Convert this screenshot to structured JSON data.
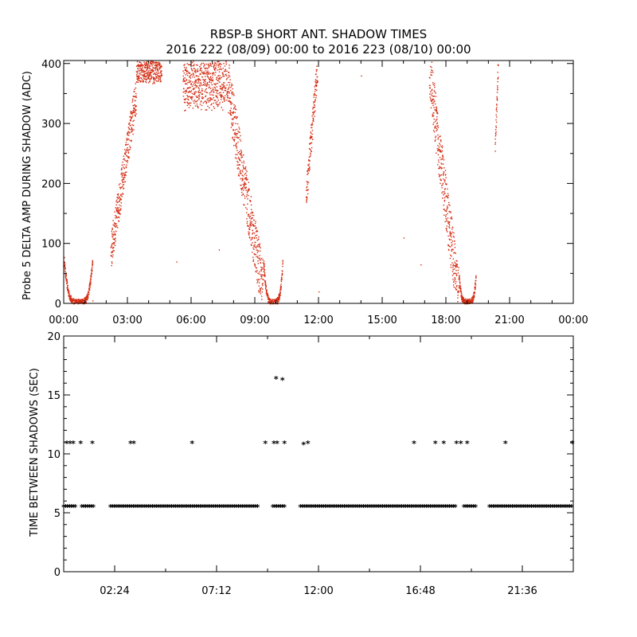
{
  "title_line1": "RBSP-B SHORT ANT. SHADOW TIMES",
  "title_line2": "2016 222 (08/09) 00:00 to 2016 223 (08/10) 00:00",
  "chart_data": [
    {
      "type": "scatter",
      "ylabel": "Probe 5 DELTA AMP DURING SHADOW (ADC)",
      "xlabel": "",
      "xlim_hours": [
        0,
        24
      ],
      "ylim": [
        0,
        405
      ],
      "x_ticks": [
        "00:00",
        "03:00",
        "06:00",
        "09:00",
        "12:00",
        "15:00",
        "18:00",
        "21:00",
        "00:00"
      ],
      "y_ticks": [
        "0",
        "100",
        "200",
        "300",
        "400"
      ],
      "point_color": "#d42a10",
      "clusters": [
        {
          "t0": 0.0,
          "t1": 1.35,
          "y_pattern": "u",
          "y_min": 2,
          "y_max": 75
        },
        {
          "t0": 2.2,
          "t1": 3.4,
          "y_pattern": "rise",
          "y_min": 85,
          "y_max": 350
        },
        {
          "t0": 3.4,
          "t1": 4.6,
          "y_pattern": "sparse-high",
          "y_min": 370,
          "y_max": 405
        },
        {
          "t0": 5.6,
          "t1": 7.6,
          "y_pattern": "plateau",
          "y_min": 330,
          "y_max": 405
        },
        {
          "t0": 7.6,
          "t1": 9.4,
          "y_pattern": "fall",
          "y_min": 20,
          "y_max": 400
        },
        {
          "t0": 9.4,
          "t1": 10.3,
          "y_pattern": "u",
          "y_min": 2,
          "y_max": 70
        },
        {
          "t0": 11.4,
          "t1": 11.95,
          "y_pattern": "rise",
          "y_min": 180,
          "y_max": 400
        },
        {
          "t0": 17.2,
          "t1": 18.6,
          "y_pattern": "fall",
          "y_min": 10,
          "y_max": 400
        },
        {
          "t0": 18.6,
          "t1": 19.4,
          "y_pattern": "u",
          "y_min": 2,
          "y_max": 45
        },
        {
          "t0": 20.3,
          "t1": 20.45,
          "y_pattern": "rise",
          "y_min": 260,
          "y_max": 400
        }
      ],
      "isolated_points": [
        {
          "t": 1.35,
          "y": 5
        },
        {
          "t": 5.3,
          "y": 70
        },
        {
          "t": 7.3,
          "y": 90
        },
        {
          "t": 12.0,
          "y": 20
        },
        {
          "t": 14.0,
          "y": 380
        },
        {
          "t": 16.0,
          "y": 110
        },
        {
          "t": 16.8,
          "y": 65
        }
      ]
    },
    {
      "type": "scatter",
      "ylabel": "TIME BETWEEN SHADOWS (SEC)",
      "xlabel": "",
      "xlim_hours": [
        0,
        24
      ],
      "ylim": [
        0,
        20
      ],
      "x_ticks": [
        "02:24",
        "07:12",
        "12:00",
        "16:48",
        "21:36"
      ],
      "y_ticks": [
        "0",
        "5",
        "10",
        "15",
        "20"
      ],
      "marker": "*",
      "baseline_value": 5.5,
      "baseline_segments_hours": [
        [
          0.0,
          0.6
        ],
        [
          0.85,
          1.45
        ],
        [
          2.2,
          9.2
        ],
        [
          9.85,
          10.45
        ],
        [
          11.15,
          18.45
        ],
        [
          18.85,
          19.45
        ],
        [
          20.05,
          24.0
        ]
      ],
      "high_points": [
        {
          "t": 0.15,
          "y": 10.9
        },
        {
          "t": 0.3,
          "y": 10.9
        },
        {
          "t": 0.45,
          "y": 10.9
        },
        {
          "t": 0.8,
          "y": 10.9
        },
        {
          "t": 1.35,
          "y": 10.9
        },
        {
          "t": 3.15,
          "y": 10.9
        },
        {
          "t": 3.3,
          "y": 10.9
        },
        {
          "t": 6.05,
          "y": 10.9
        },
        {
          "t": 9.5,
          "y": 10.9
        },
        {
          "t": 9.9,
          "y": 10.9
        },
        {
          "t": 10.05,
          "y": 10.9
        },
        {
          "t": 10.4,
          "y": 10.9
        },
        {
          "t": 11.3,
          "y": 10.8
        },
        {
          "t": 11.5,
          "y": 10.9
        },
        {
          "t": 16.5,
          "y": 10.9
        },
        {
          "t": 17.5,
          "y": 10.9
        },
        {
          "t": 17.9,
          "y": 10.9
        },
        {
          "t": 18.5,
          "y": 10.9
        },
        {
          "t": 18.7,
          "y": 10.9
        },
        {
          "t": 19.0,
          "y": 10.9
        },
        {
          "t": 20.8,
          "y": 10.9
        },
        {
          "t": 23.95,
          "y": 10.9
        },
        {
          "t": 10.0,
          "y": 16.4
        },
        {
          "t": 10.3,
          "y": 16.3
        }
      ]
    }
  ]
}
